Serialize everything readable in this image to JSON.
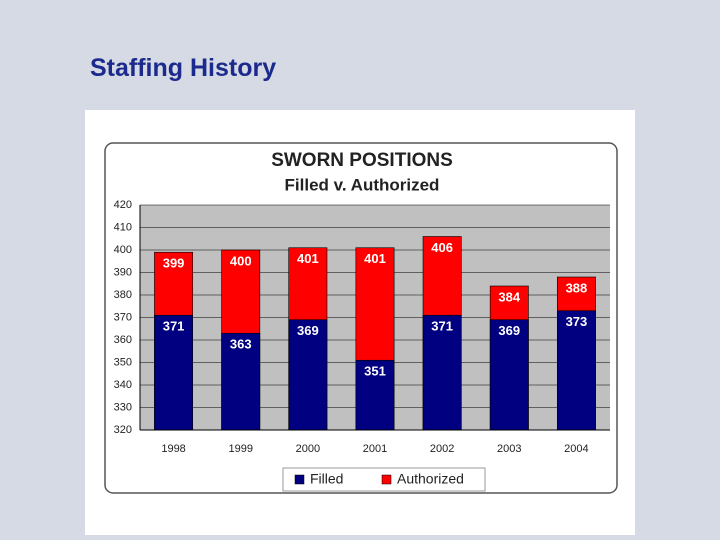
{
  "slide": {
    "title": "Staffing History"
  },
  "chart_data": {
    "type": "bar",
    "title": "SWORN POSITIONS",
    "subtitle": "Filled v. Authorized",
    "categories": [
      "1998",
      "1999",
      "2000",
      "2001",
      "2002",
      "2003",
      "2004"
    ],
    "series": [
      {
        "name": "Filled",
        "color": "#000080",
        "values": [
          371,
          363,
          369,
          351,
          371,
          369,
          373
        ]
      },
      {
        "name": "Authorized",
        "color": "#ff0000",
        "values": [
          399,
          400,
          401,
          401,
          406,
          384,
          388
        ]
      }
    ],
    "ylim": [
      320,
      420
    ],
    "yticks": [
      320,
      330,
      340,
      350,
      360,
      370,
      380,
      390,
      400,
      410,
      420
    ],
    "grid": true,
    "legend": "bottom"
  }
}
